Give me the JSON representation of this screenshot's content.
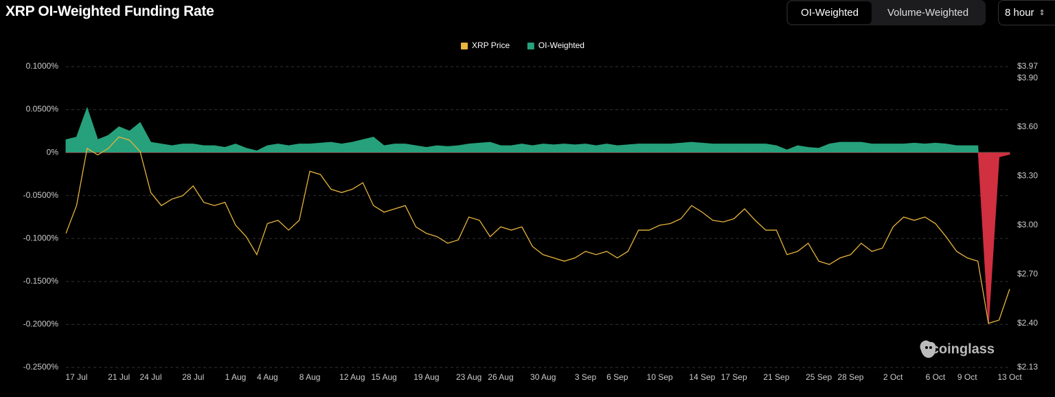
{
  "header": {
    "title": "XRP OI-Weighted Funding Rate"
  },
  "controls": {
    "tabs": [
      "OI-Weighted",
      "Volume-Weighted"
    ],
    "active_tab": 0,
    "interval": "8 hour"
  },
  "watermark": "coinglass",
  "chart_data": {
    "type": "line",
    "grid": true,
    "legend": "top",
    "categories": [
      null,
      "17 Jul",
      null,
      null,
      null,
      "21 Jul",
      null,
      null,
      "24 Jul",
      null,
      null,
      null,
      "28 Jul",
      null,
      null,
      null,
      "1 Aug",
      null,
      null,
      "4 Aug",
      null,
      null,
      null,
      "8 Aug",
      null,
      null,
      null,
      "12 Aug",
      null,
      null,
      "15 Aug",
      null,
      null,
      null,
      "19 Aug",
      null,
      null,
      null,
      "23 Aug",
      null,
      null,
      "26 Aug",
      null,
      null,
      null,
      "30 Aug",
      null,
      null,
      null,
      "3 Sep",
      null,
      null,
      "6 Sep",
      null,
      null,
      null,
      "10 Sep",
      null,
      null,
      null,
      "14 Sep",
      null,
      null,
      "17 Sep",
      null,
      null,
      null,
      "21 Sep",
      null,
      null,
      null,
      "25 Sep",
      null,
      null,
      "28 Sep",
      null,
      null,
      null,
      "2 Oct",
      null,
      null,
      null,
      "6 Oct",
      null,
      null,
      "9 Oct",
      null,
      null,
      null,
      "13 Oct"
    ],
    "ylim": [
      -0.25,
      0.1
    ],
    "yticks": [
      {
        "value": 0.1,
        "label": "0.1000%"
      },
      {
        "value": 0.05,
        "label": "0.0500%"
      },
      {
        "value": 0,
        "label": "0%"
      },
      {
        "value": -0.05,
        "label": "-0.0500%"
      },
      {
        "value": -0.1,
        "label": "-0.1000%"
      },
      {
        "value": -0.15,
        "label": "-0.1500%"
      },
      {
        "value": -0.2,
        "label": "-0.2000%"
      },
      {
        "value": -0.25,
        "label": "-0.2500%"
      }
    ],
    "y2lim": [
      2.13,
      3.97
    ],
    "y2ticks": [
      {
        "value": 3.97,
        "label": "$3.97"
      },
      {
        "value": 3.9,
        "label": "$3.90"
      },
      {
        "value": 3.6,
        "label": "$3.60"
      },
      {
        "value": 3.3,
        "label": "$3.30"
      },
      {
        "value": 3.0,
        "label": "$3.00"
      },
      {
        "value": 2.7,
        "label": "$2.70"
      },
      {
        "value": 2.4,
        "label": "$2.40"
      },
      {
        "value": 2.13,
        "label": "$2.13"
      }
    ],
    "series": [
      {
        "name": "OI-Weighted",
        "type": "area",
        "color": "#26a17b",
        "negative_color": "#d0303f",
        "values": [
          0.015,
          0.018,
          0.052,
          0.015,
          0.02,
          0.03,
          0.025,
          0.035,
          0.012,
          0.01,
          0.008,
          0.01,
          0.01,
          0.008,
          0.008,
          0.006,
          0.01,
          0.005,
          0.002,
          0.008,
          0.01,
          0.008,
          0.01,
          0.01,
          0.011,
          0.012,
          0.01,
          0.012,
          0.015,
          0.018,
          0.008,
          0.01,
          0.01,
          0.008,
          0.006,
          0.008,
          0.007,
          0.008,
          0.01,
          0.011,
          0.012,
          0.008,
          0.008,
          0.01,
          0.008,
          0.01,
          0.009,
          0.01,
          0.009,
          0.01,
          0.008,
          0.01,
          0.008,
          0.009,
          0.01,
          0.01,
          0.01,
          0.01,
          0.011,
          0.012,
          0.011,
          0.01,
          0.01,
          0.01,
          0.01,
          0.01,
          0.01,
          0.008,
          0.003,
          0.008,
          0.006,
          0.005,
          0.01,
          0.012,
          0.012,
          0.012,
          0.01,
          0.01,
          0.01,
          0.01,
          0.011,
          0.01,
          0.011,
          0.01,
          0.008,
          0.008,
          0.008,
          -0.2,
          -0.005,
          -0.002
        ]
      },
      {
        "name": "XRP Price",
        "type": "line",
        "axis": "y2",
        "color": "#e8b53d",
        "values": [
          2.95,
          3.12,
          3.47,
          3.43,
          3.47,
          3.54,
          3.52,
          3.45,
          3.2,
          3.12,
          3.16,
          3.18,
          3.24,
          3.14,
          3.12,
          3.14,
          3.0,
          2.93,
          2.82,
          3.01,
          3.03,
          2.97,
          3.03,
          3.33,
          3.31,
          3.22,
          3.2,
          3.22,
          3.26,
          3.12,
          3.08,
          3.1,
          3.12,
          2.99,
          2.95,
          2.93,
          2.89,
          2.91,
          3.05,
          3.03,
          2.93,
          2.99,
          2.97,
          2.99,
          2.87,
          2.82,
          2.8,
          2.78,
          2.8,
          2.84,
          2.82,
          2.84,
          2.8,
          2.84,
          2.97,
          2.97,
          3.0,
          3.01,
          3.04,
          3.12,
          3.08,
          3.03,
          3.02,
          3.04,
          3.1,
          3.03,
          2.97,
          2.97,
          2.82,
          2.84,
          2.89,
          2.78,
          2.76,
          2.8,
          2.82,
          2.89,
          2.84,
          2.86,
          2.99,
          3.05,
          3.03,
          3.05,
          3.01,
          2.93,
          2.84,
          2.8,
          2.78,
          2.4,
          2.42,
          2.61
        ]
      }
    ]
  }
}
